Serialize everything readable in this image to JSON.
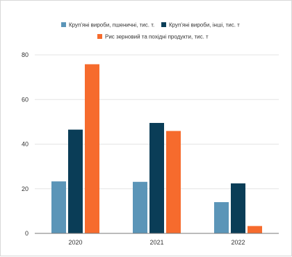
{
  "chart_data": {
    "type": "bar",
    "categories": [
      "2020",
      "2021",
      "2022"
    ],
    "series": [
      {
        "name": "Круп'яні вироби, пшеничні, тис. т.",
        "values": [
          23.3,
          23.1,
          14.0
        ],
        "color": "#5b95b8"
      },
      {
        "name": "Круп'яні вироби, інші, тис. т",
        "values": [
          46.5,
          49.5,
          22.4
        ],
        "color": "#0a3d57"
      },
      {
        "name": "Рис зерновий та похідні продукти, тис. т",
        "values": [
          75.8,
          45.9,
          3.3
        ],
        "color": "#f66b2d"
      }
    ],
    "ylim": [
      0,
      80
    ],
    "yticks": [
      0,
      20,
      40,
      60,
      80
    ],
    "grid": true,
    "legend_position": "top"
  }
}
